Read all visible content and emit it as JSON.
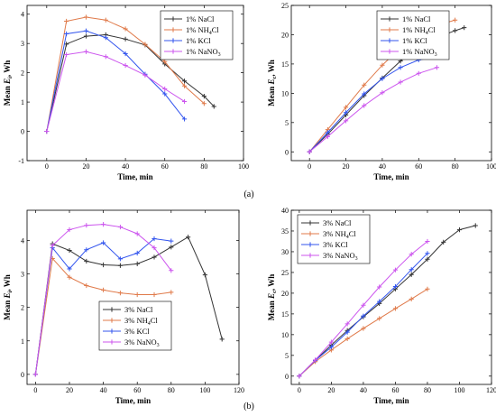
{
  "panel_labels": [
    "(a)",
    "(b)"
  ],
  "chart_data": [
    {
      "type": "line",
      "xlabel": "Time, min",
      "ylabel_main": "Mean ",
      "ylabel_italic": "E",
      "ylabel_sub": "i",
      "ylabel_tail": ", Wh",
      "xlim": [
        -10,
        100
      ],
      "ylim": [
        -1,
        4.3
      ],
      "xticks": [
        0,
        20,
        40,
        60,
        80,
        100
      ],
      "yticks": [
        -1,
        0,
        1,
        2,
        3,
        4
      ],
      "legend_position": "top-right",
      "series": [
        {
          "name": "1% NaCl",
          "color": "#333333",
          "marker": "plus",
          "x": [
            0,
            10,
            20,
            30,
            40,
            50,
            60,
            70,
            80,
            85
          ],
          "y": [
            0,
            2.98,
            3.25,
            3.3,
            3.15,
            2.95,
            2.3,
            1.72,
            1.2,
            0.85
          ]
        },
        {
          "name": "1% NH4Cl",
          "color": "#e07a4a",
          "marker": "plus",
          "x": [
            0,
            10,
            20,
            30,
            40,
            50,
            60,
            70,
            80
          ],
          "y": [
            0,
            3.76,
            3.9,
            3.8,
            3.5,
            2.97,
            2.38,
            1.55,
            0.95
          ]
        },
        {
          "name": "1% KCl",
          "color": "#3355ee",
          "marker": "plus",
          "x": [
            0,
            10,
            20,
            30,
            40,
            50,
            60,
            70
          ],
          "y": [
            0,
            3.33,
            3.43,
            3.2,
            2.65,
            1.95,
            1.28,
            0.42
          ]
        },
        {
          "name": "1% NaNO3",
          "color": "#cc55ee",
          "marker": "plus",
          "x": [
            0,
            10,
            20,
            30,
            40,
            50,
            60,
            70
          ],
          "y": [
            0,
            2.62,
            2.72,
            2.55,
            2.25,
            1.92,
            1.45,
            1.02
          ]
        }
      ],
      "legend_labels": [
        {
          "main": "1% NaCl",
          "sub": "",
          "tail": ""
        },
        {
          "main": "1% NH",
          "sub": "4",
          "tail": "Cl"
        },
        {
          "main": "1% KCl",
          "sub": "",
          "tail": ""
        },
        {
          "main": "1% NaNO",
          "sub": "3",
          "tail": ""
        }
      ]
    },
    {
      "type": "line",
      "xlabel": "Time, min",
      "ylabel_main": "Mean ",
      "ylabel_italic": "E",
      "ylabel_sub": "c",
      "ylabel_tail": ", Wh",
      "xlim": [
        -10,
        100
      ],
      "ylim": [
        -1.5,
        25
      ],
      "xticks": [
        0,
        20,
        40,
        60,
        80,
        100
      ],
      "yticks": [
        0,
        5,
        10,
        15,
        20,
        25
      ],
      "legend_position": "top-left",
      "series": [
        {
          "name": "1% NaCl",
          "color": "#333333",
          "marker": "plus",
          "x": [
            0,
            10,
            20,
            30,
            40,
            50,
            60,
            70,
            80,
            85
          ],
          "y": [
            0,
            3.0,
            6.3,
            9.6,
            12.6,
            15.5,
            17.8,
            19.5,
            20.7,
            21.2
          ]
        },
        {
          "name": "1% NH4Cl",
          "color": "#e07a4a",
          "marker": "plus",
          "x": [
            0,
            10,
            20,
            30,
            40,
            50,
            60,
            70,
            80
          ],
          "y": [
            0,
            3.8,
            7.6,
            11.4,
            14.8,
            17.8,
            20.1,
            21.6,
            22.5
          ]
        },
        {
          "name": "1% KCl",
          "color": "#3355ee",
          "marker": "plus",
          "x": [
            0,
            10,
            20,
            30,
            40,
            50,
            60,
            70
          ],
          "y": [
            0,
            3.3,
            6.7,
            9.9,
            12.5,
            14.4,
            15.7,
            16.2
          ]
        },
        {
          "name": "1% NaNO3",
          "color": "#cc55ee",
          "marker": "plus",
          "x": [
            0,
            10,
            20,
            30,
            40,
            50,
            60,
            70
          ],
          "y": [
            0,
            2.6,
            5.3,
            7.9,
            10.1,
            11.9,
            13.4,
            14.4
          ]
        }
      ],
      "legend_labels": [
        {
          "main": "1% NaCl",
          "sub": "",
          "tail": ""
        },
        {
          "main": "1% NH",
          "sub": "4",
          "tail": "Cl"
        },
        {
          "main": "1% KCl",
          "sub": "",
          "tail": ""
        },
        {
          "main": "1% NaNO",
          "sub": "3",
          "tail": ""
        }
      ]
    },
    {
      "type": "line",
      "xlabel": "Time, min",
      "ylabel_main": "Mean ",
      "ylabel_italic": "E",
      "ylabel_sub": "i",
      "ylabel_tail": ", Wh",
      "xlim": [
        -5,
        120
      ],
      "ylim": [
        -0.3,
        4.9
      ],
      "xticks": [
        0,
        20,
        40,
        60,
        80,
        100,
        120
      ],
      "yticks": [
        0,
        1,
        2,
        3,
        4
      ],
      "legend_position": "bottom-left",
      "series": [
        {
          "name": "3% NaCl",
          "color": "#333333",
          "marker": "plus",
          "x": [
            0,
            10,
            20,
            30,
            40,
            50,
            60,
            70,
            80,
            90,
            100,
            110
          ],
          "y": [
            0,
            3.9,
            3.7,
            3.38,
            3.27,
            3.25,
            3.3,
            3.5,
            3.8,
            4.1,
            2.97,
            1.05
          ]
        },
        {
          "name": "3% NH4Cl",
          "color": "#e07a4a",
          "marker": "plus",
          "x": [
            0,
            10,
            20,
            30,
            40,
            50,
            60,
            70,
            80
          ],
          "y": [
            0,
            3.46,
            2.9,
            2.65,
            2.52,
            2.43,
            2.38,
            2.38,
            2.45
          ]
        },
        {
          "name": "3% KCl",
          "color": "#3355ee",
          "marker": "plus",
          "x": [
            0,
            10,
            20,
            30,
            40,
            50,
            60,
            70,
            80
          ],
          "y": [
            0,
            3.78,
            3.15,
            3.72,
            3.93,
            3.45,
            3.62,
            4.05,
            3.98
          ]
        },
        {
          "name": "3% NaNO3",
          "color": "#cc55ee",
          "marker": "plus",
          "x": [
            0,
            10,
            20,
            30,
            40,
            50,
            60,
            70,
            80
          ],
          "y": [
            0,
            3.85,
            4.32,
            4.45,
            4.48,
            4.4,
            4.2,
            3.78,
            3.1
          ]
        }
      ],
      "legend_labels": [
        {
          "main": "3% NaCl",
          "sub": "",
          "tail": ""
        },
        {
          "main": "3% NH",
          "sub": "4",
          "tail": "Cl"
        },
        {
          "main": "3% KCl",
          "sub": "",
          "tail": ""
        },
        {
          "main": "3% NaNO",
          "sub": "3",
          "tail": ""
        }
      ]
    },
    {
      "type": "line",
      "xlabel": "Time, min",
      "ylabel_main": "Mean ",
      "ylabel_italic": "E",
      "ylabel_sub": "c",
      "ylabel_tail": ", Wh",
      "xlim": [
        -5,
        120
      ],
      "ylim": [
        -2,
        40
      ],
      "xticks": [
        0,
        20,
        40,
        60,
        80,
        100,
        120
      ],
      "yticks": [
        0,
        5,
        10,
        15,
        20,
        25,
        30,
        35,
        40
      ],
      "legend_position": "top-left",
      "series": [
        {
          "name": "3% NaCl",
          "color": "#333333",
          "marker": "plus",
          "x": [
            0,
            10,
            20,
            30,
            40,
            50,
            60,
            70,
            80,
            90,
            100,
            110
          ],
          "y": [
            0,
            3.8,
            7.5,
            11.0,
            14.3,
            17.5,
            21.0,
            24.5,
            28.2,
            32.3,
            35.3,
            36.3
          ]
        },
        {
          "name": "3% NH4Cl",
          "color": "#e07a4a",
          "marker": "plus",
          "x": [
            0,
            10,
            20,
            30,
            40,
            50,
            60,
            70,
            80
          ],
          "y": [
            0,
            3.5,
            6.3,
            9.0,
            11.5,
            13.9,
            16.3,
            18.6,
            21.0
          ]
        },
        {
          "name": "3% KCl",
          "color": "#3355ee",
          "marker": "plus",
          "x": [
            0,
            10,
            20,
            30,
            40,
            50,
            60,
            70,
            80
          ],
          "y": [
            0,
            3.8,
            7.0,
            10.6,
            14.5,
            18.0,
            21.6,
            25.7,
            29.6
          ]
        },
        {
          "name": "3% NaNO3",
          "color": "#cc55ee",
          "marker": "plus",
          "x": [
            0,
            10,
            20,
            30,
            40,
            50,
            60,
            70,
            80
          ],
          "y": [
            0,
            3.9,
            8.2,
            12.6,
            17.1,
            21.5,
            25.6,
            29.4,
            32.5
          ]
        }
      ],
      "legend_labels": [
        {
          "main": "3% NaCl",
          "sub": "",
          "tail": ""
        },
        {
          "main": "3% NH",
          "sub": "4",
          "tail": "Cl"
        },
        {
          "main": "3% KCl",
          "sub": "",
          "tail": ""
        },
        {
          "main": "3% NaNO",
          "sub": "3",
          "tail": ""
        }
      ]
    }
  ]
}
